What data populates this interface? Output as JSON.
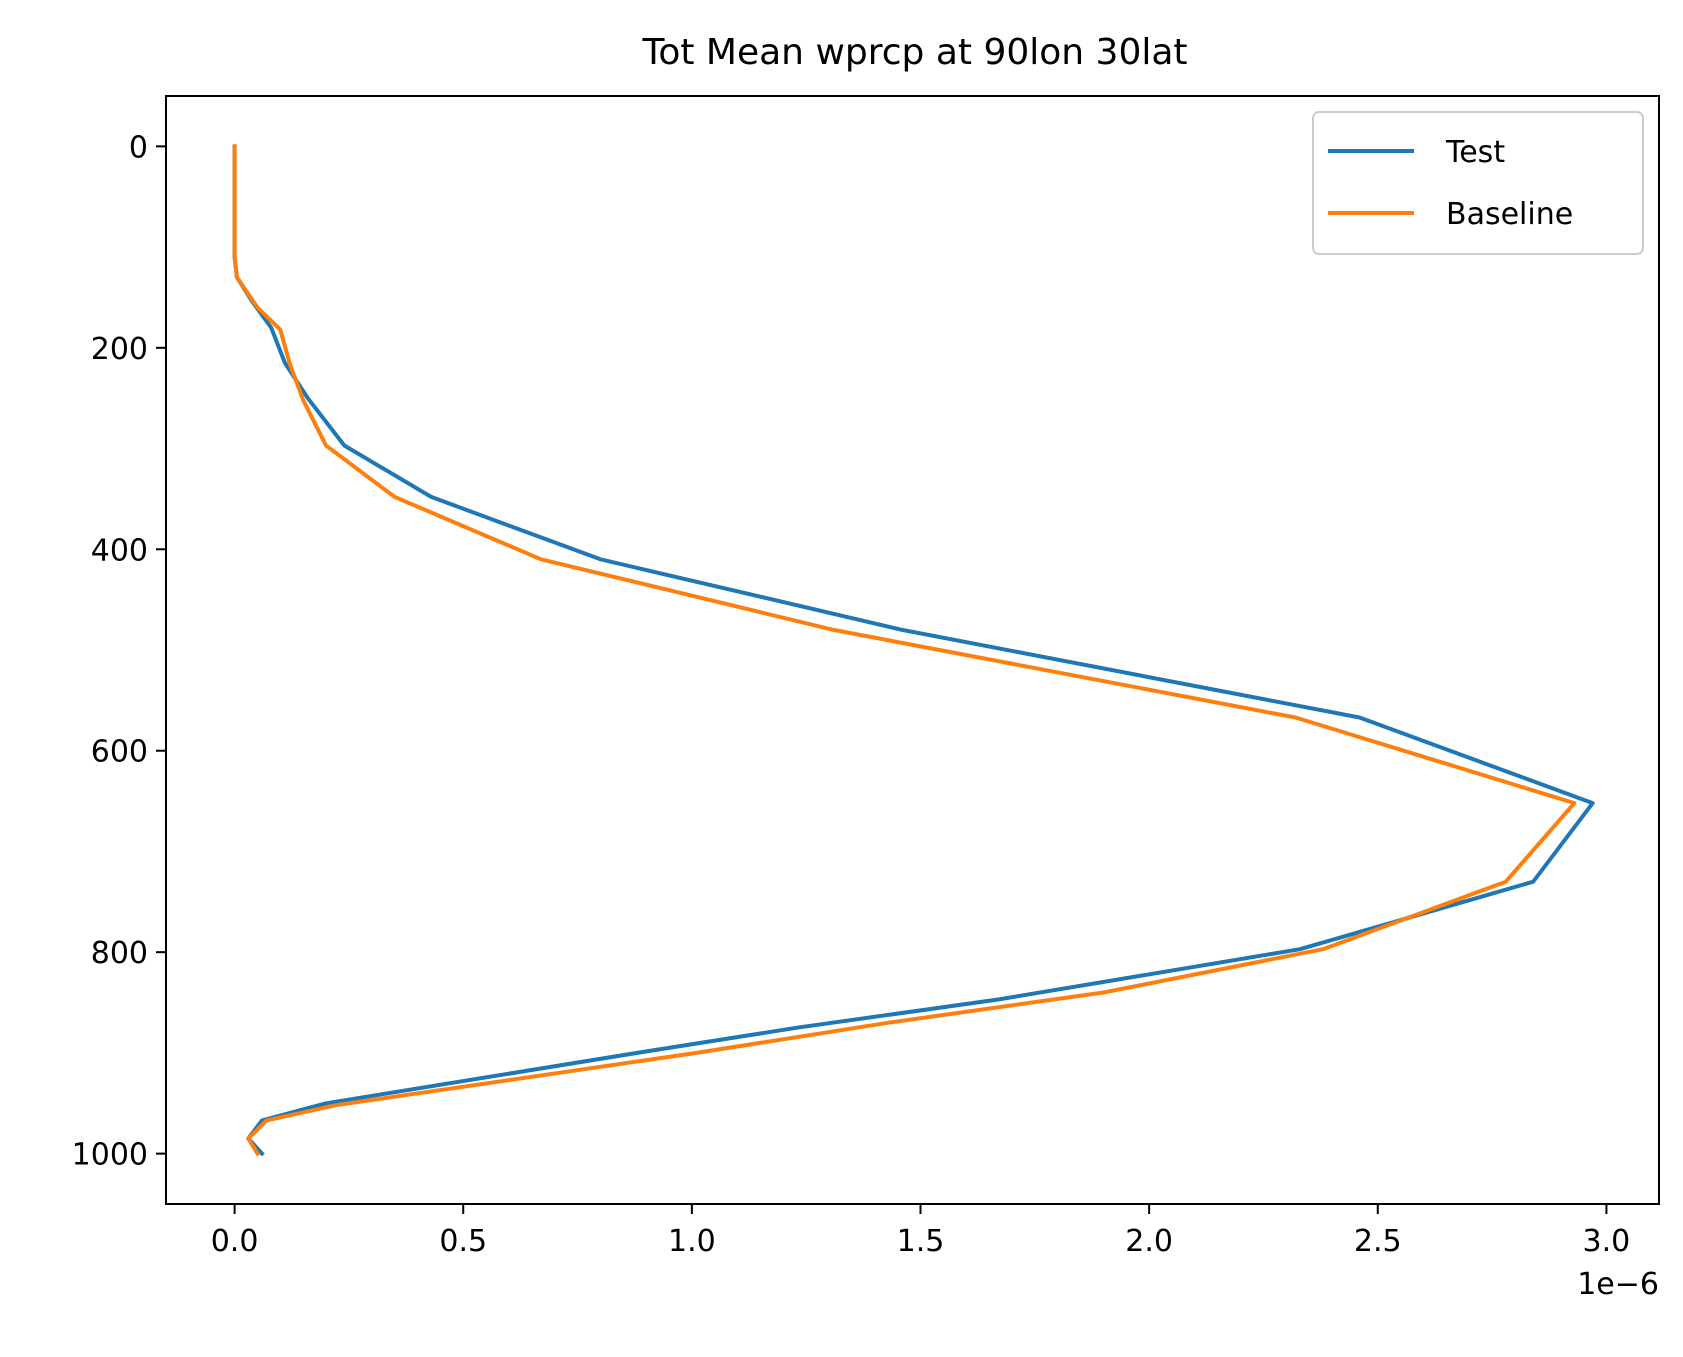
{
  "chart_data": {
    "type": "line",
    "title": "Tot Mean wprcp at 90lon 30lat",
    "xlabel": "",
    "ylabel": "",
    "x_offset_text": "1e−6",
    "xlim": [
      -0.15,
      3.115
    ],
    "ylim": [
      -50,
      1050
    ],
    "y_inverted": true,
    "x_ticks": [
      0.0,
      0.5,
      1.0,
      1.5,
      2.0,
      2.5,
      3.0
    ],
    "x_tick_labels": [
      "0.0",
      "0.5",
      "1.0",
      "1.5",
      "2.0",
      "2.5",
      "3.0"
    ],
    "y_ticks": [
      0,
      200,
      400,
      600,
      800,
      1000
    ],
    "y_tick_labels": [
      "0",
      "200",
      "400",
      "600",
      "800",
      "1000"
    ],
    "grid": false,
    "legend_position": "top-right",
    "series": [
      {
        "name": "Test",
        "color": "#1f77b4",
        "points": [
          [
            0.0,
            0
          ],
          [
            0.0,
            50
          ],
          [
            0.0,
            100
          ],
          [
            0.0,
            110
          ],
          [
            0.005,
            130
          ],
          [
            0.04,
            155
          ],
          [
            0.08,
            180
          ],
          [
            0.11,
            215
          ],
          [
            0.16,
            250
          ],
          [
            0.24,
            297
          ],
          [
            0.43,
            348
          ],
          [
            0.8,
            410
          ],
          [
            1.46,
            480
          ],
          [
            2.46,
            567
          ],
          [
            2.97,
            652
          ],
          [
            2.84,
            730
          ],
          [
            2.33,
            797
          ],
          [
            1.67,
            847
          ],
          [
            1.23,
            875
          ],
          [
            0.88,
            900
          ],
          [
            0.2,
            950
          ],
          [
            0.06,
            967
          ],
          [
            0.03,
            985
          ],
          [
            0.06,
            1000
          ]
        ]
      },
      {
        "name": "Baseline",
        "color": "#ff7f0e",
        "points": [
          [
            0.0,
            0
          ],
          [
            0.0,
            50
          ],
          [
            0.0,
            100
          ],
          [
            0.0,
            110
          ],
          [
            0.005,
            130
          ],
          [
            0.05,
            160
          ],
          [
            0.1,
            182
          ],
          [
            0.12,
            215
          ],
          [
            0.15,
            252
          ],
          [
            0.2,
            297
          ],
          [
            0.35,
            348
          ],
          [
            0.67,
            410
          ],
          [
            1.31,
            480
          ],
          [
            2.32,
            567
          ],
          [
            2.93,
            652
          ],
          [
            2.78,
            730
          ],
          [
            2.38,
            797
          ],
          [
            1.9,
            840
          ],
          [
            1.43,
            870
          ],
          [
            1.01,
            900
          ],
          [
            0.22,
            952
          ],
          [
            0.07,
            967
          ],
          [
            0.03,
            985
          ],
          [
            0.05,
            1000
          ]
        ]
      }
    ]
  }
}
